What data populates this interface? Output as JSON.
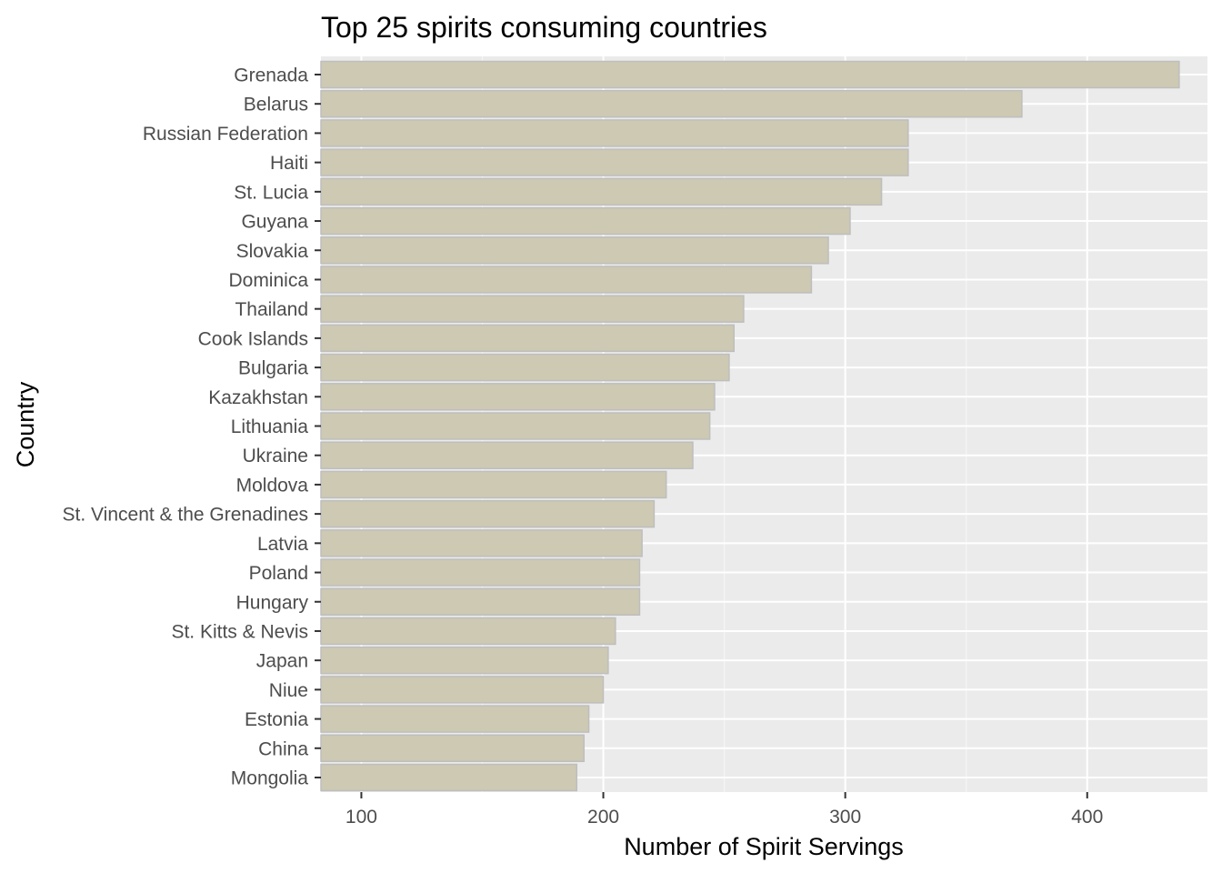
{
  "chart_data": {
    "type": "bar",
    "orientation": "horizontal",
    "title": "Top 25 spirits consuming countries",
    "xlabel": "Number of Spirit Servings",
    "ylabel": "Country",
    "categories": [
      "Grenada",
      "Belarus",
      "Russian Federation",
      "Haiti",
      "St. Lucia",
      "Guyana",
      "Slovakia",
      "Dominica",
      "Thailand",
      "Cook Islands",
      "Bulgaria",
      "Kazakhstan",
      "Lithuania",
      "Ukraine",
      "Moldova",
      "St. Vincent & the Grenadines",
      "Latvia",
      "Poland",
      "Hungary",
      "St. Kitts & Nevis",
      "Japan",
      "Niue",
      "Estonia",
      "China",
      "Mongolia"
    ],
    "values": [
      438,
      373,
      326,
      326,
      315,
      302,
      293,
      286,
      258,
      254,
      252,
      246,
      244,
      237,
      226,
      221,
      216,
      215,
      215,
      205,
      202,
      200,
      194,
      192,
      189
    ],
    "xlim": [
      83.3,
      449.7
    ],
    "xticks": [
      100,
      200,
      300,
      400
    ],
    "grid": true,
    "legend": "none",
    "colors": {
      "bar_fill": "#cdc9b3",
      "bar_stroke": "#bebebe",
      "panel_bg": "#ebebeb",
      "grid_major": "#ffffff",
      "grid_minor": "#f5f5f5"
    }
  }
}
